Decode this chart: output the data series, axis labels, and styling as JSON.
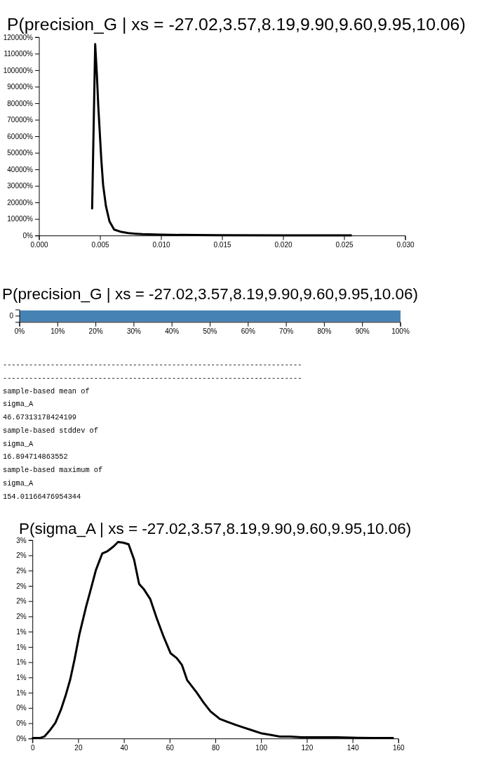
{
  "chart_data": [
    {
      "type": "line",
      "title": "P(precision_G | xs = -27.02,3.57,8.19,9.90,9.60,9.95,10.06)",
      "x": [
        0.00433,
        0.00458,
        0.00472,
        0.00483,
        0.00495,
        0.00508,
        0.00523,
        0.00546,
        0.00575,
        0.00613,
        0.00671,
        0.00728,
        0.00786,
        0.00843,
        0.00997,
        0.01073,
        0.01457,
        0.02,
        0.02554
      ],
      "values": [
        16600,
        116000,
        97300,
        78900,
        63300,
        46300,
        30800,
        18000,
        8800,
        3800,
        2400,
        1700,
        1300,
        1000,
        700,
        600,
        400,
        300,
        300
      ],
      "color": "#000000",
      "xlim": [
        0,
        0.03
      ],
      "xticks": [
        {
          "value": 0,
          "label": "0.000"
        },
        {
          "value": 0.005,
          "label": "0.005"
        },
        {
          "value": 0.01,
          "label": "0.010"
        },
        {
          "value": 0.015,
          "label": "0.015"
        },
        {
          "value": 0.02,
          "label": "0.020"
        },
        {
          "value": 0.025,
          "label": "0.025"
        },
        {
          "value": 0.03,
          "label": "0.030"
        }
      ],
      "ylim": [
        0,
        120000
      ],
      "yticks": [
        {
          "value": 0,
          "label": "0%"
        },
        {
          "value": 10000,
          "label": "10000%"
        },
        {
          "value": 20000,
          "label": "20000%"
        },
        {
          "value": 30000,
          "label": "30000%"
        },
        {
          "value": 40000,
          "label": "40000%"
        },
        {
          "value": 50000,
          "label": "50000%"
        },
        {
          "value": 60000,
          "label": "60000%"
        },
        {
          "value": 70000,
          "label": "70000%"
        },
        {
          "value": 80000,
          "label": "80000%"
        },
        {
          "value": 90000,
          "label": "90000%"
        },
        {
          "value": 100000,
          "label": "100000%"
        },
        {
          "value": 110000,
          "label": "110000%"
        },
        {
          "value": 120000,
          "label": "120000%"
        }
      ]
    },
    {
      "type": "bar",
      "orientation": "horizontal",
      "title": "P(precision_G | xs = -27.02,3.57,8.19,9.90,9.60,9.95,10.06)",
      "categories": [
        "0"
      ],
      "values": [
        100
      ],
      "color": "#4682b4",
      "xlim": [
        0,
        100
      ],
      "xticks": [
        {
          "value": 0,
          "label": "0%"
        },
        {
          "value": 10,
          "label": "10%"
        },
        {
          "value": 20,
          "label": "20%"
        },
        {
          "value": 30,
          "label": "30%"
        },
        {
          "value": 40,
          "label": "40%"
        },
        {
          "value": 50,
          "label": "50%"
        },
        {
          "value": 60,
          "label": "60%"
        },
        {
          "value": 70,
          "label": "70%"
        },
        {
          "value": 80,
          "label": "80%"
        },
        {
          "value": 90,
          "label": "90%"
        },
        {
          "value": 100,
          "label": "100%"
        }
      ]
    },
    {
      "type": "other",
      "annotations": [
        "---------------------------------------------------------------------",
        "---------------------------------------------------------------------",
        "sample-based mean of",
        "sigma_A",
        "46.67313178424199",
        "sample-based stddev of",
        "sigma_A",
        "16.894714863552",
        "sample-based maximum of",
        "sigma_A",
        "154.01166476954344"
      ]
    },
    {
      "type": "line",
      "title": "P(sigma_A | xs = -27.02,3.57,8.19,9.90,9.60,9.95,10.06)",
      "x": [
        0,
        3.1,
        5.1,
        7.7,
        9.9,
        12.3,
        14.5,
        16.4,
        18.2,
        20.4,
        23.3,
        25.3,
        27.6,
        30.4,
        32.7,
        35.3,
        37.3,
        39.6,
        41.9,
        44.3,
        46.5,
        48.6,
        51.4,
        54.2,
        57.2,
        60.3,
        62.9,
        65.2,
        67.5,
        71.6,
        74.6,
        77.7,
        81.8,
        85.4,
        89,
        92,
        96.1,
        100.2,
        104.3,
        108,
        112.5,
        117.6,
        124.7,
        133,
        148.3,
        157.5
      ],
      "values": [
        0.01,
        0.01,
        0.03,
        0.12,
        0.21,
        0.38,
        0.58,
        0.78,
        1.03,
        1.37,
        1.73,
        1.95,
        2.21,
        2.43,
        2.46,
        2.52,
        2.58,
        2.57,
        2.55,
        2.35,
        2.03,
        1.96,
        1.83,
        1.58,
        1.34,
        1.12,
        1.06,
        0.97,
        0.77,
        0.61,
        0.48,
        0.36,
        0.26,
        0.22,
        0.18,
        0.15,
        0.11,
        0.07,
        0.05,
        0.03,
        0.03,
        0.02,
        0.02,
        0.02,
        0.01,
        0.01
      ],
      "color": "#000000",
      "xlim": [
        0,
        160
      ],
      "xticks": [
        0,
        20,
        40,
        60,
        80,
        100,
        120,
        140,
        160
      ],
      "ylim": [
        0,
        2.6
      ],
      "yticks": [
        {
          "value": 0,
          "label": "0%"
        },
        {
          "value": 0.2,
          "label": "0%"
        },
        {
          "value": 0.4,
          "label": "0%"
        },
        {
          "value": 0.6,
          "label": "1%"
        },
        {
          "value": 0.8,
          "label": "1%"
        },
        {
          "value": 1,
          "label": "1%"
        },
        {
          "value": 1.2,
          "label": "1%"
        },
        {
          "value": 1.4,
          "label": "1%"
        },
        {
          "value": 1.6,
          "label": "2%"
        },
        {
          "value": 1.8,
          "label": "2%"
        },
        {
          "value": 2,
          "label": "2%"
        },
        {
          "value": 2.2,
          "label": "2%"
        },
        {
          "value": 2.4,
          "label": "2%"
        },
        {
          "value": 2.6,
          "label": "3%"
        }
      ]
    }
  ]
}
